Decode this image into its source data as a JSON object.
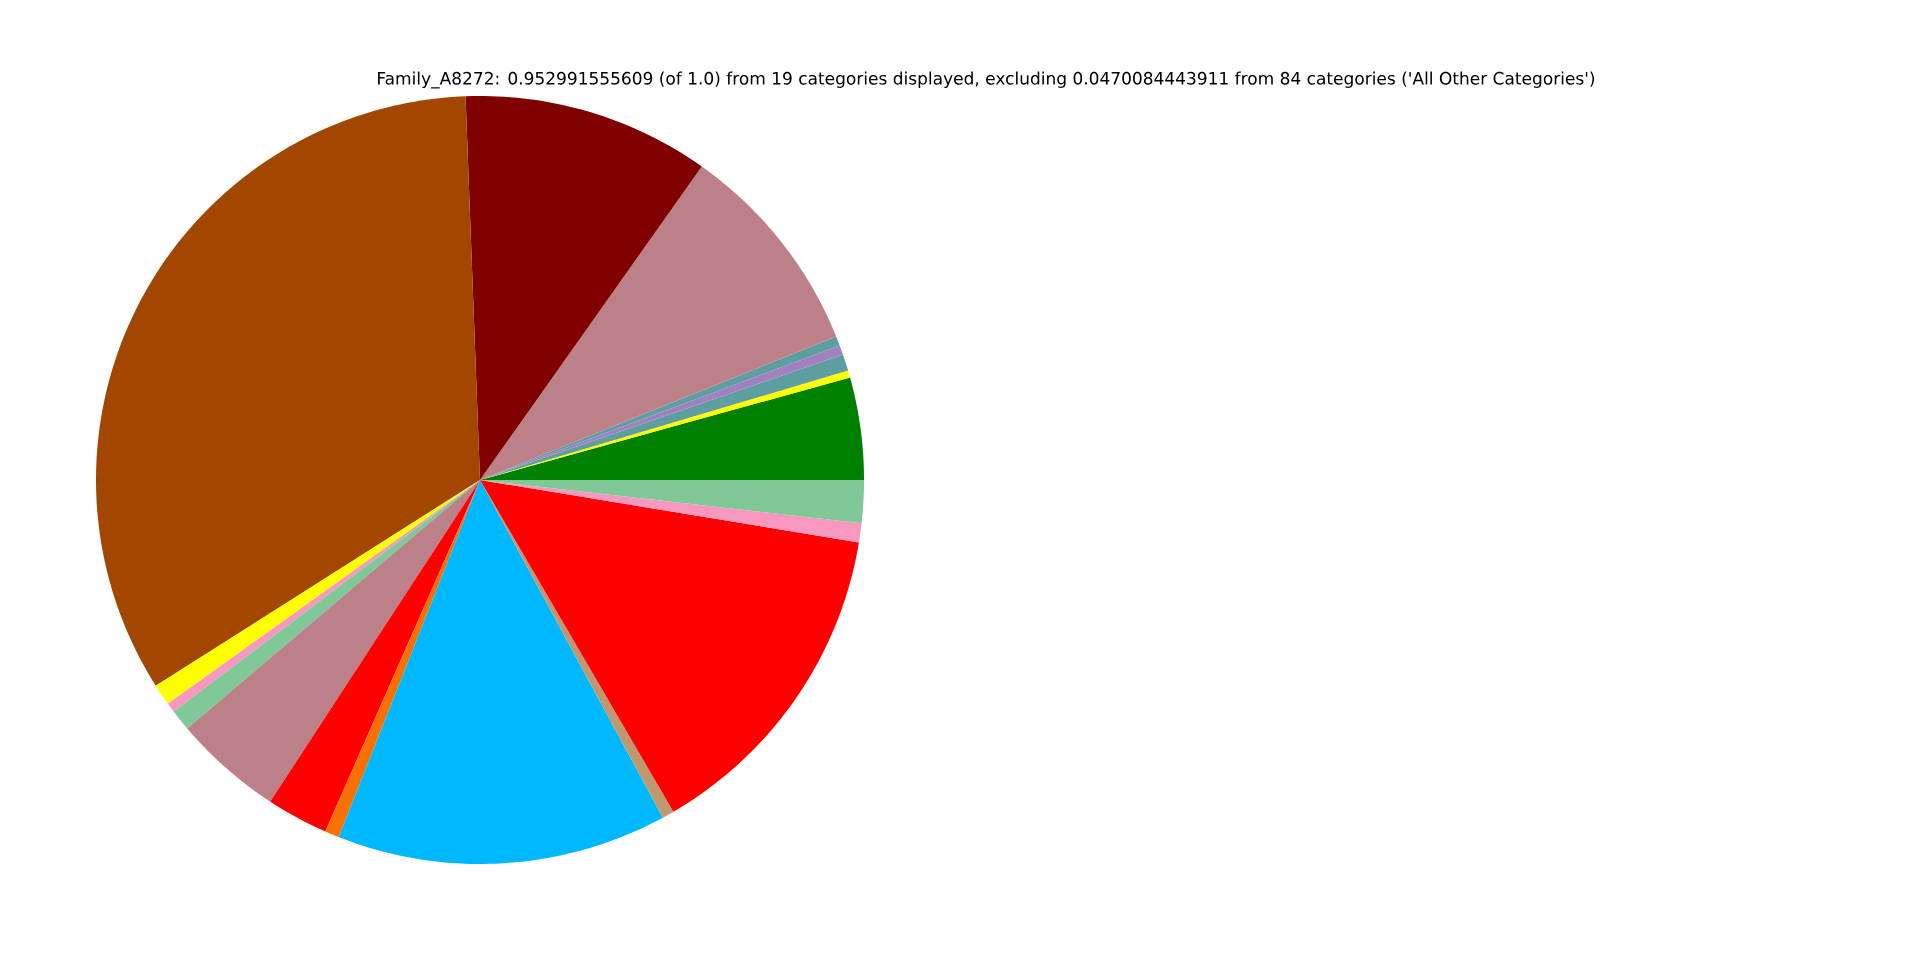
{
  "chart_data": {
    "type": "pie",
    "title": "Family_A8272: 0.952991555609 (of 1.0) from 19 categories displayed, excluding 0.0470084443911 from 84 categories ('All Other Categories')",
    "categories": [
      null,
      null,
      null,
      null,
      null,
      null,
      null,
      null,
      null,
      null,
      null,
      null,
      null,
      null,
      null,
      null,
      null,
      null,
      null
    ],
    "values": [
      4.3,
      0.3,
      0.7,
      0.4,
      0.4,
      9.1,
      10.4,
      33.4,
      0.9,
      0.4,
      0.9,
      4.6,
      2.6,
      0.6,
      13.9,
      0.5,
      14.0,
      0.8,
      1.8
    ],
    "colors": [
      "#008000",
      "#ffff00",
      "#5f9ea0",
      "#a080c0",
      "#5f9ea0",
      "#bc8088",
      "#800000",
      "#a34600",
      "#ffff00",
      "#f898c0",
      "#80c898",
      "#bc8088",
      "#ff0000",
      "#f87000",
      "#00b8ff",
      "#c09870",
      "#ff0000",
      "#f898c0",
      "#80c898"
    ]
  }
}
